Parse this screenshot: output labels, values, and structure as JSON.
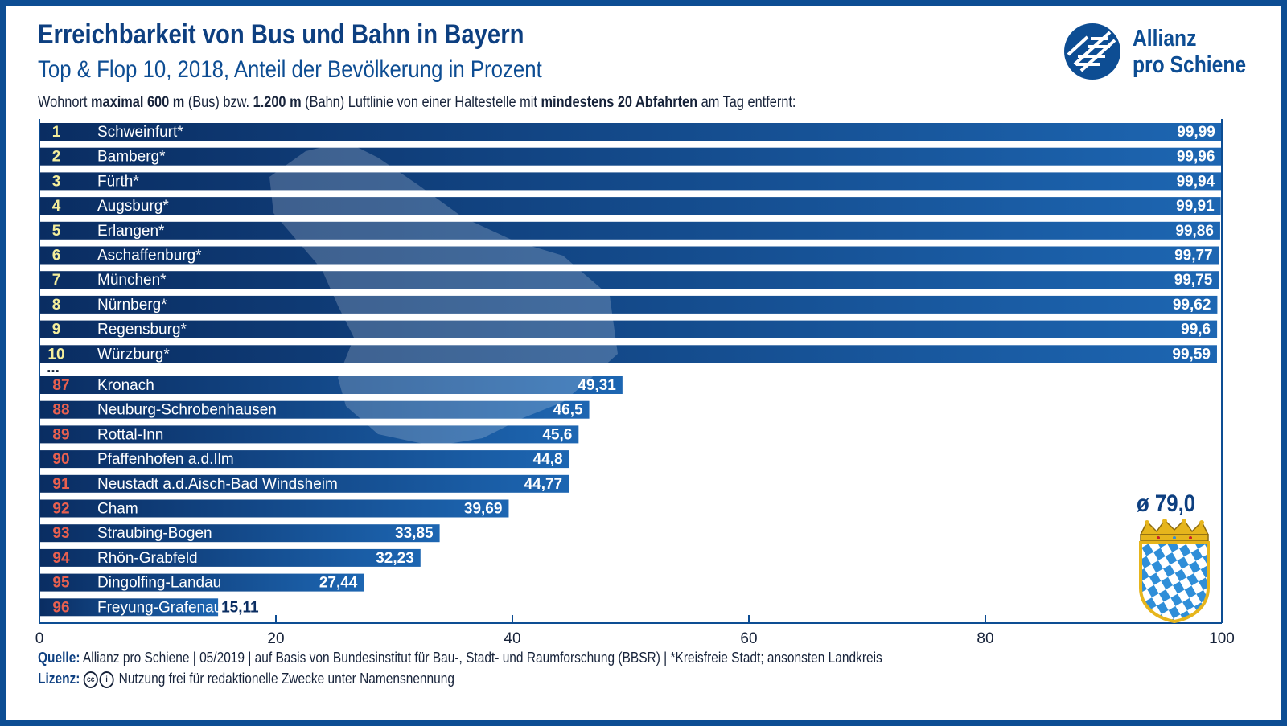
{
  "header": {
    "title": "Erreichbarkeit von Bus und Bahn in Bayern",
    "subtitle": "Top & Flop 10, 2018, Anteil der Bevölkerung in Prozent",
    "desc_parts": [
      "Wohnort ",
      "maximal 600 m",
      " (Bus) bzw. ",
      "1.200 m",
      " (Bahn) Luftlinie von einer Haltestelle mit ",
      "mindestens 20 Abfahrten",
      " am Tag entfernt:"
    ]
  },
  "logo": {
    "line1": "Allianz",
    "line2": "pro Schiene",
    "icon": "allianz-pro-schiene-logo-icon"
  },
  "colors": {
    "frame": "#0d4d93",
    "bar_dark": "#0a2d62",
    "bar_light": "#1d66b2",
    "top_rank": "#f4ee9c",
    "flop_rank": "#e8604f",
    "title": "#0d3f80"
  },
  "chart_data": {
    "type": "bar",
    "orientation": "horizontal",
    "xlim": [
      0,
      100
    ],
    "x_ticks": [
      0,
      20,
      40,
      60,
      80,
      100
    ],
    "gap_marker": "...",
    "top": [
      {
        "rank": "1",
        "name": "Schweinfurt*",
        "value": 99.99,
        "label": "99,99"
      },
      {
        "rank": "2",
        "name": "Bamberg*",
        "value": 99.96,
        "label": "99,96"
      },
      {
        "rank": "3",
        "name": "Fürth*",
        "value": 99.94,
        "label": "99,94"
      },
      {
        "rank": "4",
        "name": "Augsburg*",
        "value": 99.91,
        "label": "99,91"
      },
      {
        "rank": "5",
        "name": "Erlangen*",
        "value": 99.86,
        "label": "99,86"
      },
      {
        "rank": "6",
        "name": "Aschaffenburg*",
        "value": 99.77,
        "label": "99,77"
      },
      {
        "rank": "7",
        "name": "München*",
        "value": 99.75,
        "label": "99,75"
      },
      {
        "rank": "8",
        "name": "Nürnberg*",
        "value": 99.62,
        "label": "99,62"
      },
      {
        "rank": "9",
        "name": "Regensburg*",
        "value": 99.6,
        "label": "99,6"
      },
      {
        "rank": "10",
        "name": "Würzburg*",
        "value": 99.59,
        "label": "99,59"
      }
    ],
    "flop": [
      {
        "rank": "87",
        "name": "Kronach",
        "value": 49.31,
        "label": "49,31"
      },
      {
        "rank": "88",
        "name": "Neuburg-Schrobenhausen",
        "value": 46.5,
        "label": "46,5"
      },
      {
        "rank": "89",
        "name": "Rottal-Inn",
        "value": 45.6,
        "label": "45,6"
      },
      {
        "rank": "90",
        "name": "Pfaffenhofen a.d.Ilm",
        "value": 44.8,
        "label": "44,8"
      },
      {
        "rank": "91",
        "name": "Neustadt a.d.Aisch-Bad Windsheim",
        "value": 44.77,
        "label": "44,77"
      },
      {
        "rank": "92",
        "name": "Cham",
        "value": 39.69,
        "label": "39,69"
      },
      {
        "rank": "93",
        "name": "Straubing-Bogen",
        "value": 33.85,
        "label": "33,85"
      },
      {
        "rank": "94",
        "name": "Rhön-Grabfeld",
        "value": 32.23,
        "label": "32,23"
      },
      {
        "rank": "95",
        "name": "Dingolfing-Landau",
        "value": 27.44,
        "label": "27,44"
      },
      {
        "rank": "96",
        "name": "Freyung-Grafenau",
        "value": 15.11,
        "label": "15,11"
      }
    ],
    "average_label": "ø 79,0"
  },
  "footer": {
    "source_label": "Quelle:",
    "source_text": "Allianz pro Schiene | 05/2019 | auf Basis von Bundesinstitut für Bau-, Stadt- und Raumforschung (BBSR) | *Kreisfreie Stadt; ansonsten Landkreis",
    "license_label": "Lizenz:",
    "license_text": "Nutzung frei für redaktionelle Zwecke unter Namensnennung",
    "icons": [
      "cc-icon",
      "attribution-icon"
    ]
  }
}
